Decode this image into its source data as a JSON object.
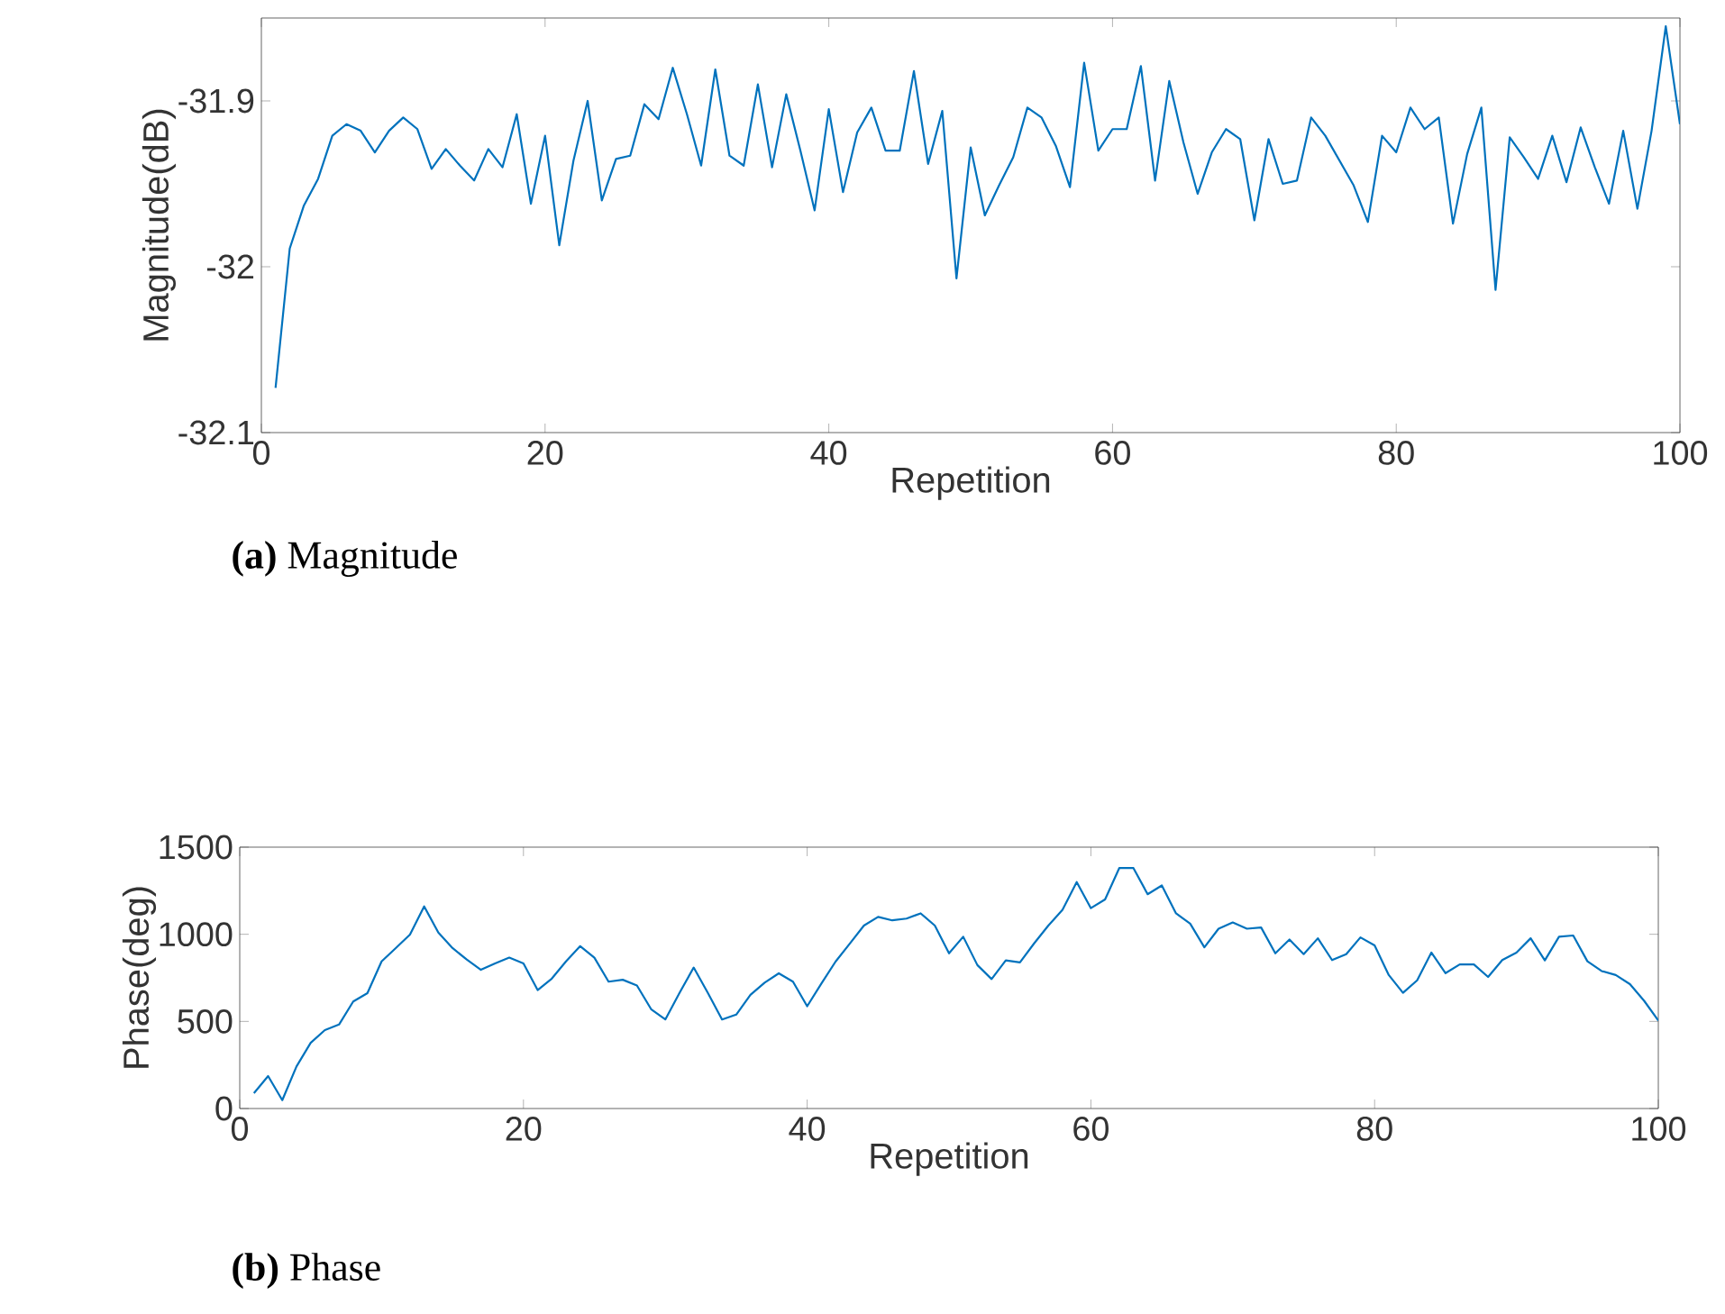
{
  "chart_data": [
    {
      "type": "line",
      "xlabel": "Repetition",
      "ylabel": "Magnitude(dB)",
      "color": "#0072bd",
      "x": [
        1,
        2,
        3,
        4,
        5,
        6,
        7,
        8,
        9,
        10,
        11,
        12,
        13,
        14,
        15,
        16,
        17,
        18,
        19,
        20,
        21,
        22,
        23,
        24,
        25,
        26,
        27,
        28,
        29,
        30,
        31,
        32,
        33,
        34,
        35,
        36,
        37,
        38,
        39,
        40,
        41,
        42,
        43,
        44,
        45,
        46,
        47,
        48,
        49,
        50,
        51,
        52,
        53,
        54,
        55,
        56,
        57,
        58,
        59,
        60,
        61,
        62,
        63,
        64,
        65,
        66,
        67,
        68,
        69,
        70,
        71,
        72,
        73,
        74,
        75,
        76,
        77,
        78,
        79,
        80,
        81,
        82,
        83,
        84,
        85,
        86,
        87,
        88,
        89,
        90,
        91,
        92,
        93,
        94,
        95,
        96,
        97,
        98,
        99,
        100
      ],
      "values": [
        -32.073,
        -31.989,
        -31.963,
        -31.947,
        -31.921,
        -31.914,
        -31.918,
        -31.931,
        -31.918,
        -31.91,
        -31.917,
        -31.941,
        -31.929,
        -31.939,
        -31.948,
        -31.929,
        -31.94,
        -31.908,
        -31.962,
        -31.921,
        -31.987,
        -31.936,
        -31.9,
        -31.96,
        -31.935,
        -31.933,
        -31.902,
        -31.911,
        -31.88,
        -31.908,
        -31.939,
        -31.881,
        -31.933,
        -31.939,
        -31.89,
        -31.94,
        -31.896,
        -31.93,
        -31.966,
        -31.905,
        -31.955,
        -31.919,
        -31.904,
        -31.93,
        -31.93,
        -31.882,
        -31.938,
        -31.906,
        -32.007,
        -31.928,
        -31.969,
        -31.951,
        -31.934,
        -31.904,
        -31.91,
        -31.927,
        -31.952,
        -31.877,
        -31.93,
        -31.917,
        -31.917,
        -31.879,
        -31.948,
        -31.888,
        -31.925,
        -31.956,
        -31.931,
        -31.917,
        -31.923,
        -31.972,
        -31.923,
        -31.95,
        -31.948,
        -31.91,
        -31.921,
        -31.936,
        -31.951,
        -31.973,
        -31.921,
        -31.931,
        -31.904,
        -31.917,
        -31.91,
        -31.974,
        -31.932,
        -31.904,
        -32.014,
        -31.922,
        -31.934,
        -31.947,
        -31.921,
        -31.949,
        -31.916,
        -31.94,
        -31.962,
        -31.918,
        -31.965,
        -31.918,
        -31.855,
        -31.914
      ],
      "xlim": [
        0,
        100
      ],
      "xticks": [
        0,
        20,
        40,
        60,
        80,
        100
      ],
      "ylim": [
        -32.1,
        -31.85
      ],
      "yticks": [
        -32.1,
        -32,
        -31.9
      ],
      "annotations": [
        "**(a)** Magnitude"
      ]
    },
    {
      "type": "line",
      "xlabel": "Repetition",
      "ylabel": "Phase(deg)",
      "color": "#0072bd",
      "x": [
        1,
        2,
        3,
        4,
        5,
        6,
        7,
        8,
        9,
        10,
        11,
        12,
        13,
        14,
        15,
        16,
        17,
        18,
        19,
        20,
        21,
        22,
        23,
        24,
        25,
        26,
        27,
        28,
        29,
        30,
        31,
        32,
        33,
        34,
        35,
        36,
        37,
        38,
        39,
        40,
        41,
        42,
        43,
        44,
        45,
        46,
        47,
        48,
        49,
        50,
        51,
        52,
        53,
        54,
        55,
        56,
        57,
        58,
        59,
        60,
        61,
        62,
        63,
        64,
        65,
        66,
        67,
        68,
        69,
        70,
        71,
        72,
        73,
        74,
        75,
        76,
        77,
        78,
        79,
        80,
        81,
        82,
        83,
        84,
        85,
        86,
        87,
        88,
        89,
        90,
        91,
        92,
        93,
        94,
        95,
        96,
        97,
        98,
        99,
        100
      ],
      "values": [
        88,
        186,
        48,
        241,
        377,
        450,
        482,
        614,
        662,
        844,
        921,
        998,
        1160,
        1010,
        921,
        855,
        796,
        833,
        866,
        833,
        680,
        746,
        844,
        932,
        866,
        728,
        739,
        706,
        570,
        511,
        663,
        809,
        663,
        511,
        539,
        652,
        722,
        776,
        728,
        587,
        717,
        843,
        946,
        1050,
        1100,
        1080,
        1090,
        1120,
        1050,
        891,
        986,
        823,
        743,
        850,
        839,
        948,
        1050,
        1140,
        1300,
        1150,
        1200,
        1380,
        1380,
        1230,
        1280,
        1120,
        1061,
        925,
        1032,
        1068,
        1032,
        1039,
        891,
        970,
        886,
        977,
        852,
        886,
        982,
        936,
        766,
        664,
        736,
        895,
        777,
        827,
        827,
        755,
        852,
        895,
        977,
        850,
        986,
        993,
        845,
        789,
        766,
        714,
        618,
        505
      ],
      "xlim": [
        0,
        100
      ],
      "xticks": [
        0,
        20,
        40,
        60,
        80,
        100
      ],
      "ylim": [
        0,
        1500
      ],
      "yticks": [
        0,
        500,
        1000,
        1500
      ],
      "annotations": [
        "**(b)** Phase"
      ]
    }
  ]
}
